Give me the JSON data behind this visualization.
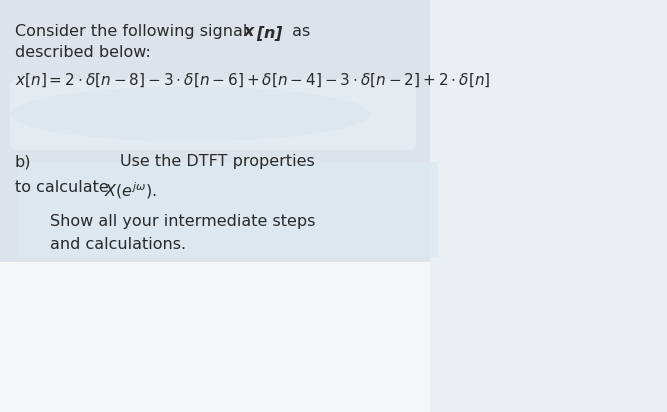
{
  "bg_main_color": "#dce3eb",
  "bg_right_color": "#eaeef2",
  "bg_bottom_color": "#f0f2f5",
  "bg_answer_color": "#e8ecf0",
  "text_color": "#2a2a2a",
  "line1_normal": "Consider the following signal ",
  "line1_bold": "x[n]",
  "line1_end": " as",
  "line2": "described below:",
  "part_b": "b)",
  "dtft_text": "Use the DTFT properties",
  "calc_text": "to calculate ",
  "show_text1": "Show all your intermediate steps",
  "show_text2": "and calculations.",
  "figwidth": 6.67,
  "figheight": 4.12,
  "dpi": 100
}
